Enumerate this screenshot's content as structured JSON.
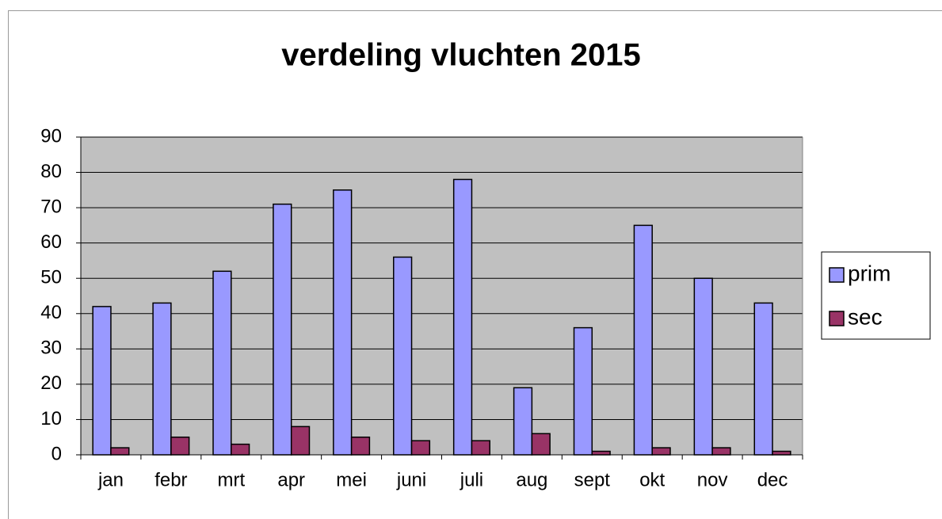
{
  "chart_data": {
    "type": "bar",
    "title": "verdeling vluchten 2015",
    "categories": [
      "jan",
      "febr",
      "mrt",
      "apr",
      "mei",
      "juni",
      "juli",
      "aug",
      "sept",
      "okt",
      "nov",
      "dec"
    ],
    "series": [
      {
        "name": "prim",
        "color": "#9999ff",
        "values": [
          42,
          43,
          52,
          71,
          75,
          56,
          78,
          19,
          36,
          65,
          50,
          43
        ]
      },
      {
        "name": "sec",
        "color": "#993366",
        "values": [
          2,
          5,
          3,
          8,
          5,
          4,
          4,
          6,
          1,
          2,
          2,
          1
        ]
      }
    ],
    "ylim": [
      0,
      90
    ],
    "yticks": [
      0,
      10,
      20,
      30,
      40,
      50,
      60,
      70,
      80,
      90
    ],
    "grid": true,
    "legend": "right"
  }
}
